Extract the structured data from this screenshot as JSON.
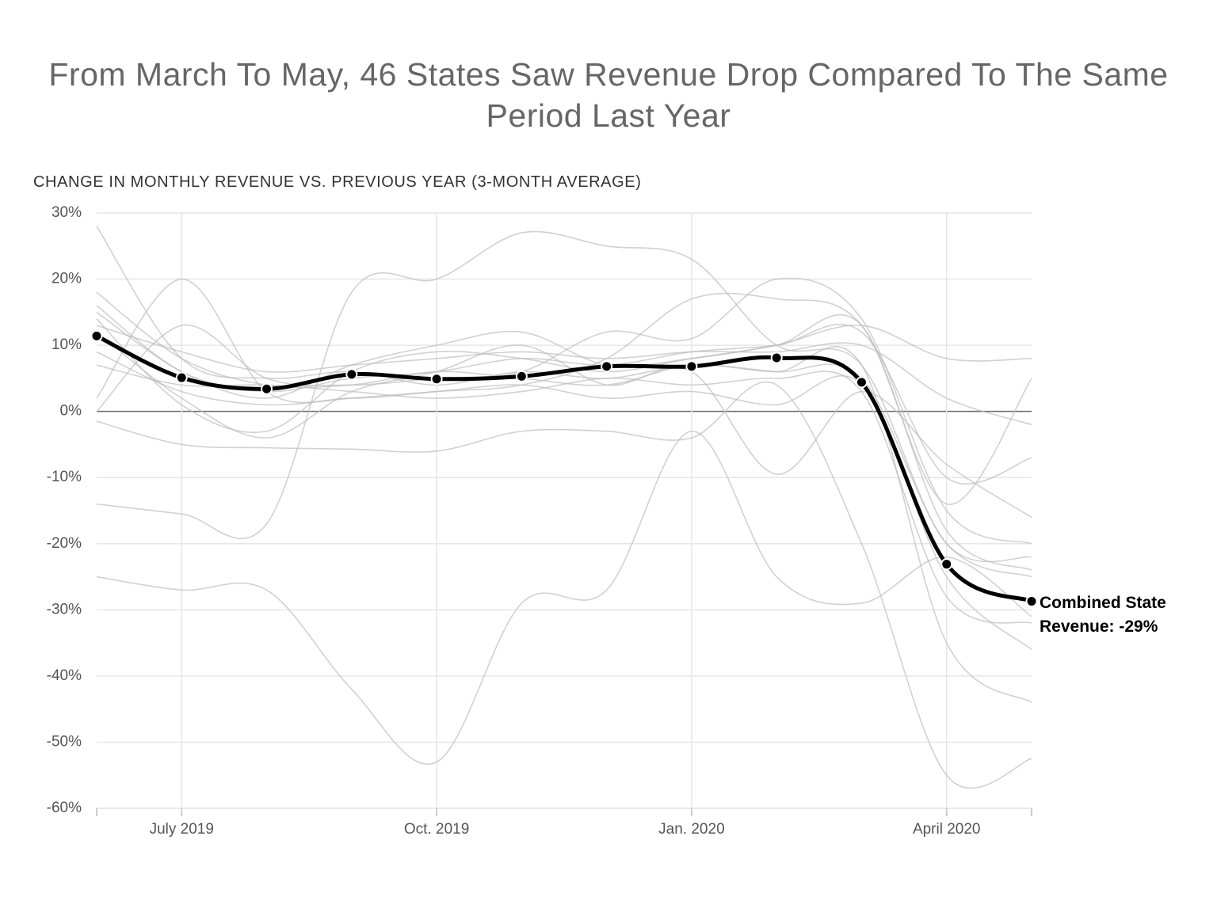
{
  "chart_data": {
    "type": "line",
    "title": "From March To May, 46 States Saw Revenue Drop Compared To The Same Period Last Year",
    "subtitle": "CHANGE IN MONTHLY REVENUE VS. PREVIOUS YEAR (3-MONTH AVERAGE)",
    "annotation": "Combined State Revenue: -29%",
    "categories": [
      null,
      "July 2019",
      null,
      null,
      "Oct. 2019",
      null,
      null,
      "Jan. 2020",
      null,
      null,
      "April 2020",
      null
    ],
    "ylim": [
      -60,
      30
    ],
    "yticks": [
      {
        "value": -60,
        "label": "-60%"
      },
      {
        "value": -50,
        "label": "-50%"
      },
      {
        "value": -40,
        "label": "-40%"
      },
      {
        "value": -30,
        "label": "-30%"
      },
      {
        "value": -20,
        "label": "-20%"
      },
      {
        "value": -10,
        "label": "-10%"
      },
      {
        "value": 0,
        "label": "0%"
      },
      {
        "value": 10,
        "label": "10%"
      },
      {
        "value": 20,
        "label": "20%"
      },
      {
        "value": 30,
        "label": "30%"
      }
    ],
    "grid": true,
    "series": [
      {
        "color": "#bdbdbd",
        "values": [
          28,
          8,
          5,
          6,
          4,
          6,
          5,
          7,
          6,
          5,
          -20,
          -25
        ]
      },
      {
        "color": "#bdbdbd",
        "values": [
          -14,
          -15.5,
          -17,
          18,
          20,
          27,
          25,
          23,
          10,
          7,
          -20,
          -22
        ]
      },
      {
        "color": "#bdbdbd",
        "values": [
          -25,
          -27,
          -27,
          -42,
          -53,
          -29,
          -27,
          -3,
          -25,
          -29,
          -22,
          -31
        ]
      },
      {
        "color": "#bdbdbd",
        "values": [
          0,
          13,
          5,
          4,
          5,
          6,
          12,
          11,
          20,
          14,
          -15,
          -20
        ]
      },
      {
        "color": "#bdbdbd",
        "values": [
          2,
          20,
          3,
          2,
          3,
          4,
          8,
          17,
          17,
          13,
          -14,
          5
        ]
      },
      {
        "color": "#bdbdbd",
        "values": [
          -1.5,
          -5,
          -5.5,
          -5.7,
          -6,
          -3,
          -3,
          -4,
          4,
          -20,
          -55,
          -52.5
        ]
      },
      {
        "color": "#bdbdbd",
        "values": [
          15,
          6,
          2,
          7,
          10,
          12,
          7,
          8,
          10,
          13,
          8,
          8
        ]
      },
      {
        "color": "#bdbdbd",
        "values": [
          18,
          8,
          4,
          4,
          6,
          5,
          4,
          7,
          6,
          7,
          -35,
          -44
        ]
      },
      {
        "color": "#bdbdbd",
        "values": [
          12,
          2,
          -4,
          3,
          6,
          10,
          4,
          6,
          -9.5,
          3,
          -8,
          -16
        ]
      },
      {
        "color": "#bdbdbd",
        "values": [
          13,
          9,
          6,
          7,
          8,
          9,
          8,
          9,
          9,
          10,
          2,
          -2
        ]
      },
      {
        "color": "#bdbdbd",
        "values": [
          9,
          3,
          1,
          2,
          3,
          4,
          2,
          3,
          1,
          4,
          -25,
          -36
        ]
      },
      {
        "color": "#bdbdbd",
        "values": [
          16,
          6,
          3,
          5,
          6,
          8,
          7,
          9,
          10,
          12,
          -10,
          -7
        ]
      },
      {
        "color": "#bdbdbd",
        "values": [
          7,
          4,
          4,
          3,
          2,
          3,
          5,
          4,
          5,
          3,
          -28,
          -32
        ]
      },
      {
        "color": "#bdbdbd",
        "values": [
          14,
          1,
          -3,
          6,
          9,
          8,
          6,
          8,
          10,
          13,
          -18,
          -24
        ]
      },
      {
        "color": "#000000",
        "markers": true,
        "values": [
          11.4,
          5.1,
          3.4,
          5.6,
          4.9,
          5.3,
          6.8,
          6.8,
          8.1,
          4.4,
          -23.1,
          -28.7
        ]
      }
    ]
  }
}
